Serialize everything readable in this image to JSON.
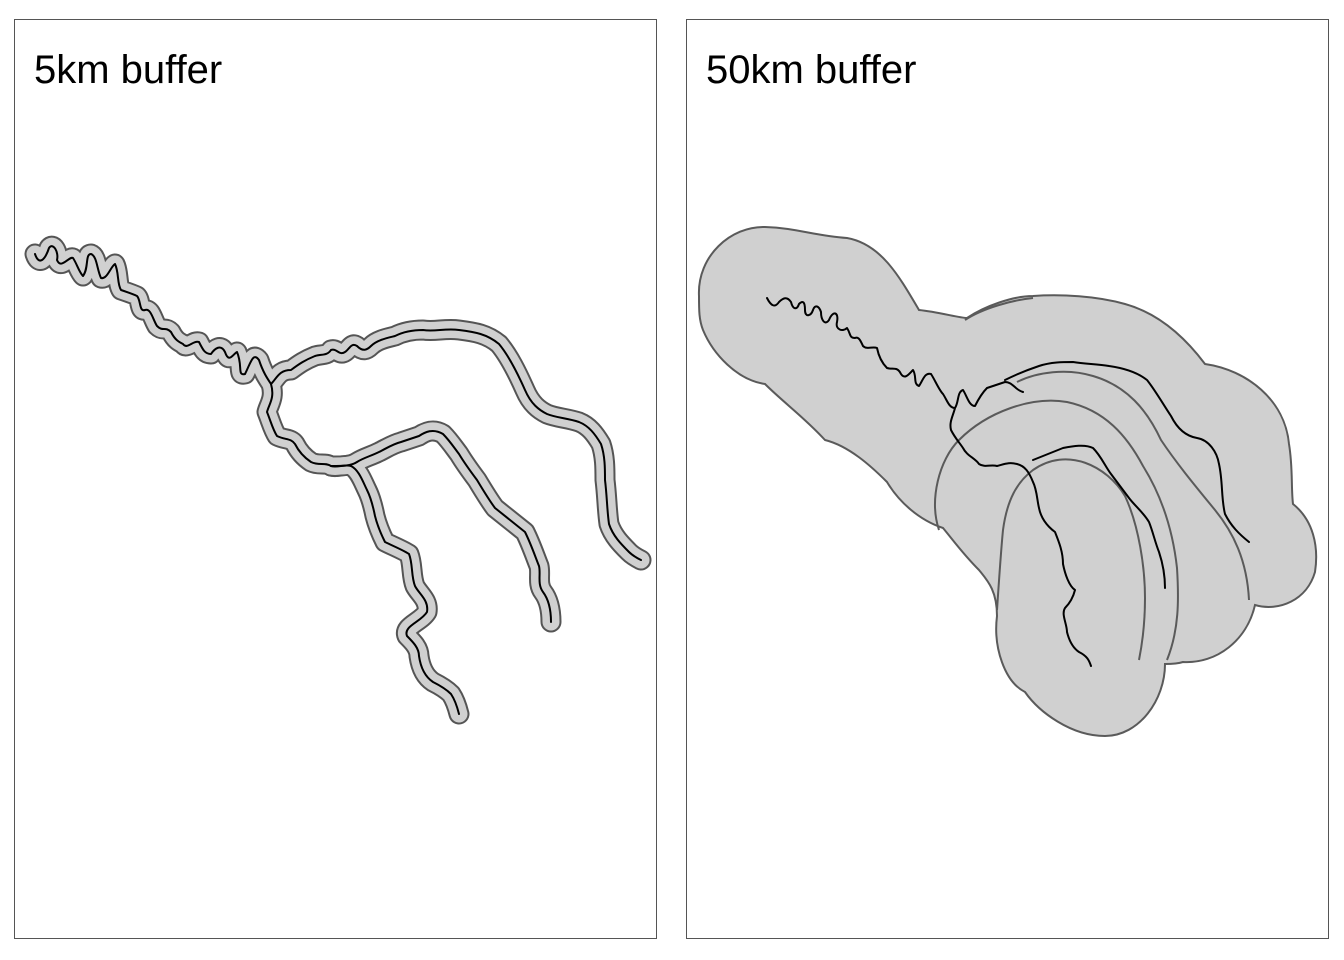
{
  "panels": [
    {
      "id": "left",
      "title": "5km buffer"
    },
    {
      "id": "right",
      "title": "50km buffer"
    }
  ],
  "colors": {
    "buffer_fill": "#d0d0d0",
    "buffer_outline": "#555555",
    "river": "#000000",
    "panel_border": "#555555",
    "background": "#ffffff"
  }
}
